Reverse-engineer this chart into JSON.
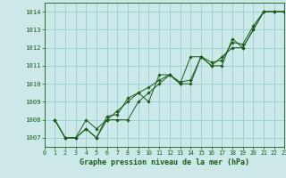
{
  "title": "Graphe pression niveau de la mer (hPa)",
  "bg_color": "#cce8e8",
  "grid_color": "#99cccc",
  "line_color": "#1a5c1a",
  "marker_color": "#1a5c1a",
  "xlim": [
    0,
    23
  ],
  "ylim": [
    1006.5,
    1014.5
  ],
  "xticks": [
    0,
    1,
    2,
    3,
    4,
    5,
    6,
    7,
    8,
    9,
    10,
    11,
    12,
    13,
    14,
    15,
    16,
    17,
    18,
    19,
    20,
    21,
    22,
    23
  ],
  "yticks": [
    1007,
    1008,
    1009,
    1010,
    1011,
    1012,
    1013,
    1014
  ],
  "series": [
    [
      1008.0,
      1007.0,
      1007.0,
      1007.5,
      1007.0,
      1008.0,
      1008.0,
      1008.0,
      1009.0,
      1009.5,
      1010.0,
      1010.5,
      1010.0,
      1010.0,
      1011.5,
      1011.0,
      1011.0,
      1012.5,
      1012.0,
      1013.0,
      1014.0,
      1014.0,
      1014.0
    ],
    [
      1008.0,
      1007.0,
      1007.0,
      1008.0,
      1007.5,
      1008.0,
      1008.5,
      1009.0,
      1009.5,
      1009.0,
      1010.5,
      1010.5,
      1010.0,
      1011.5,
      1011.5,
      1011.0,
      1011.5,
      1012.0,
      1012.0,
      1013.0,
      1014.0,
      1014.0,
      1014.0
    ],
    [
      1008.0,
      1007.0,
      1007.0,
      1007.5,
      1007.0,
      1008.2,
      1008.3,
      1009.2,
      1009.5,
      1009.8,
      1010.2,
      1010.5,
      1010.1,
      1010.2,
      1011.5,
      1011.2,
      1011.3,
      1012.3,
      1012.2,
      1013.2,
      1014.0,
      1014.0,
      1014.0
    ]
  ],
  "ytick_labels": [
    "1007",
    "1008",
    "1009",
    "1010",
    "1011",
    "1012",
    "1013",
    "1014"
  ]
}
